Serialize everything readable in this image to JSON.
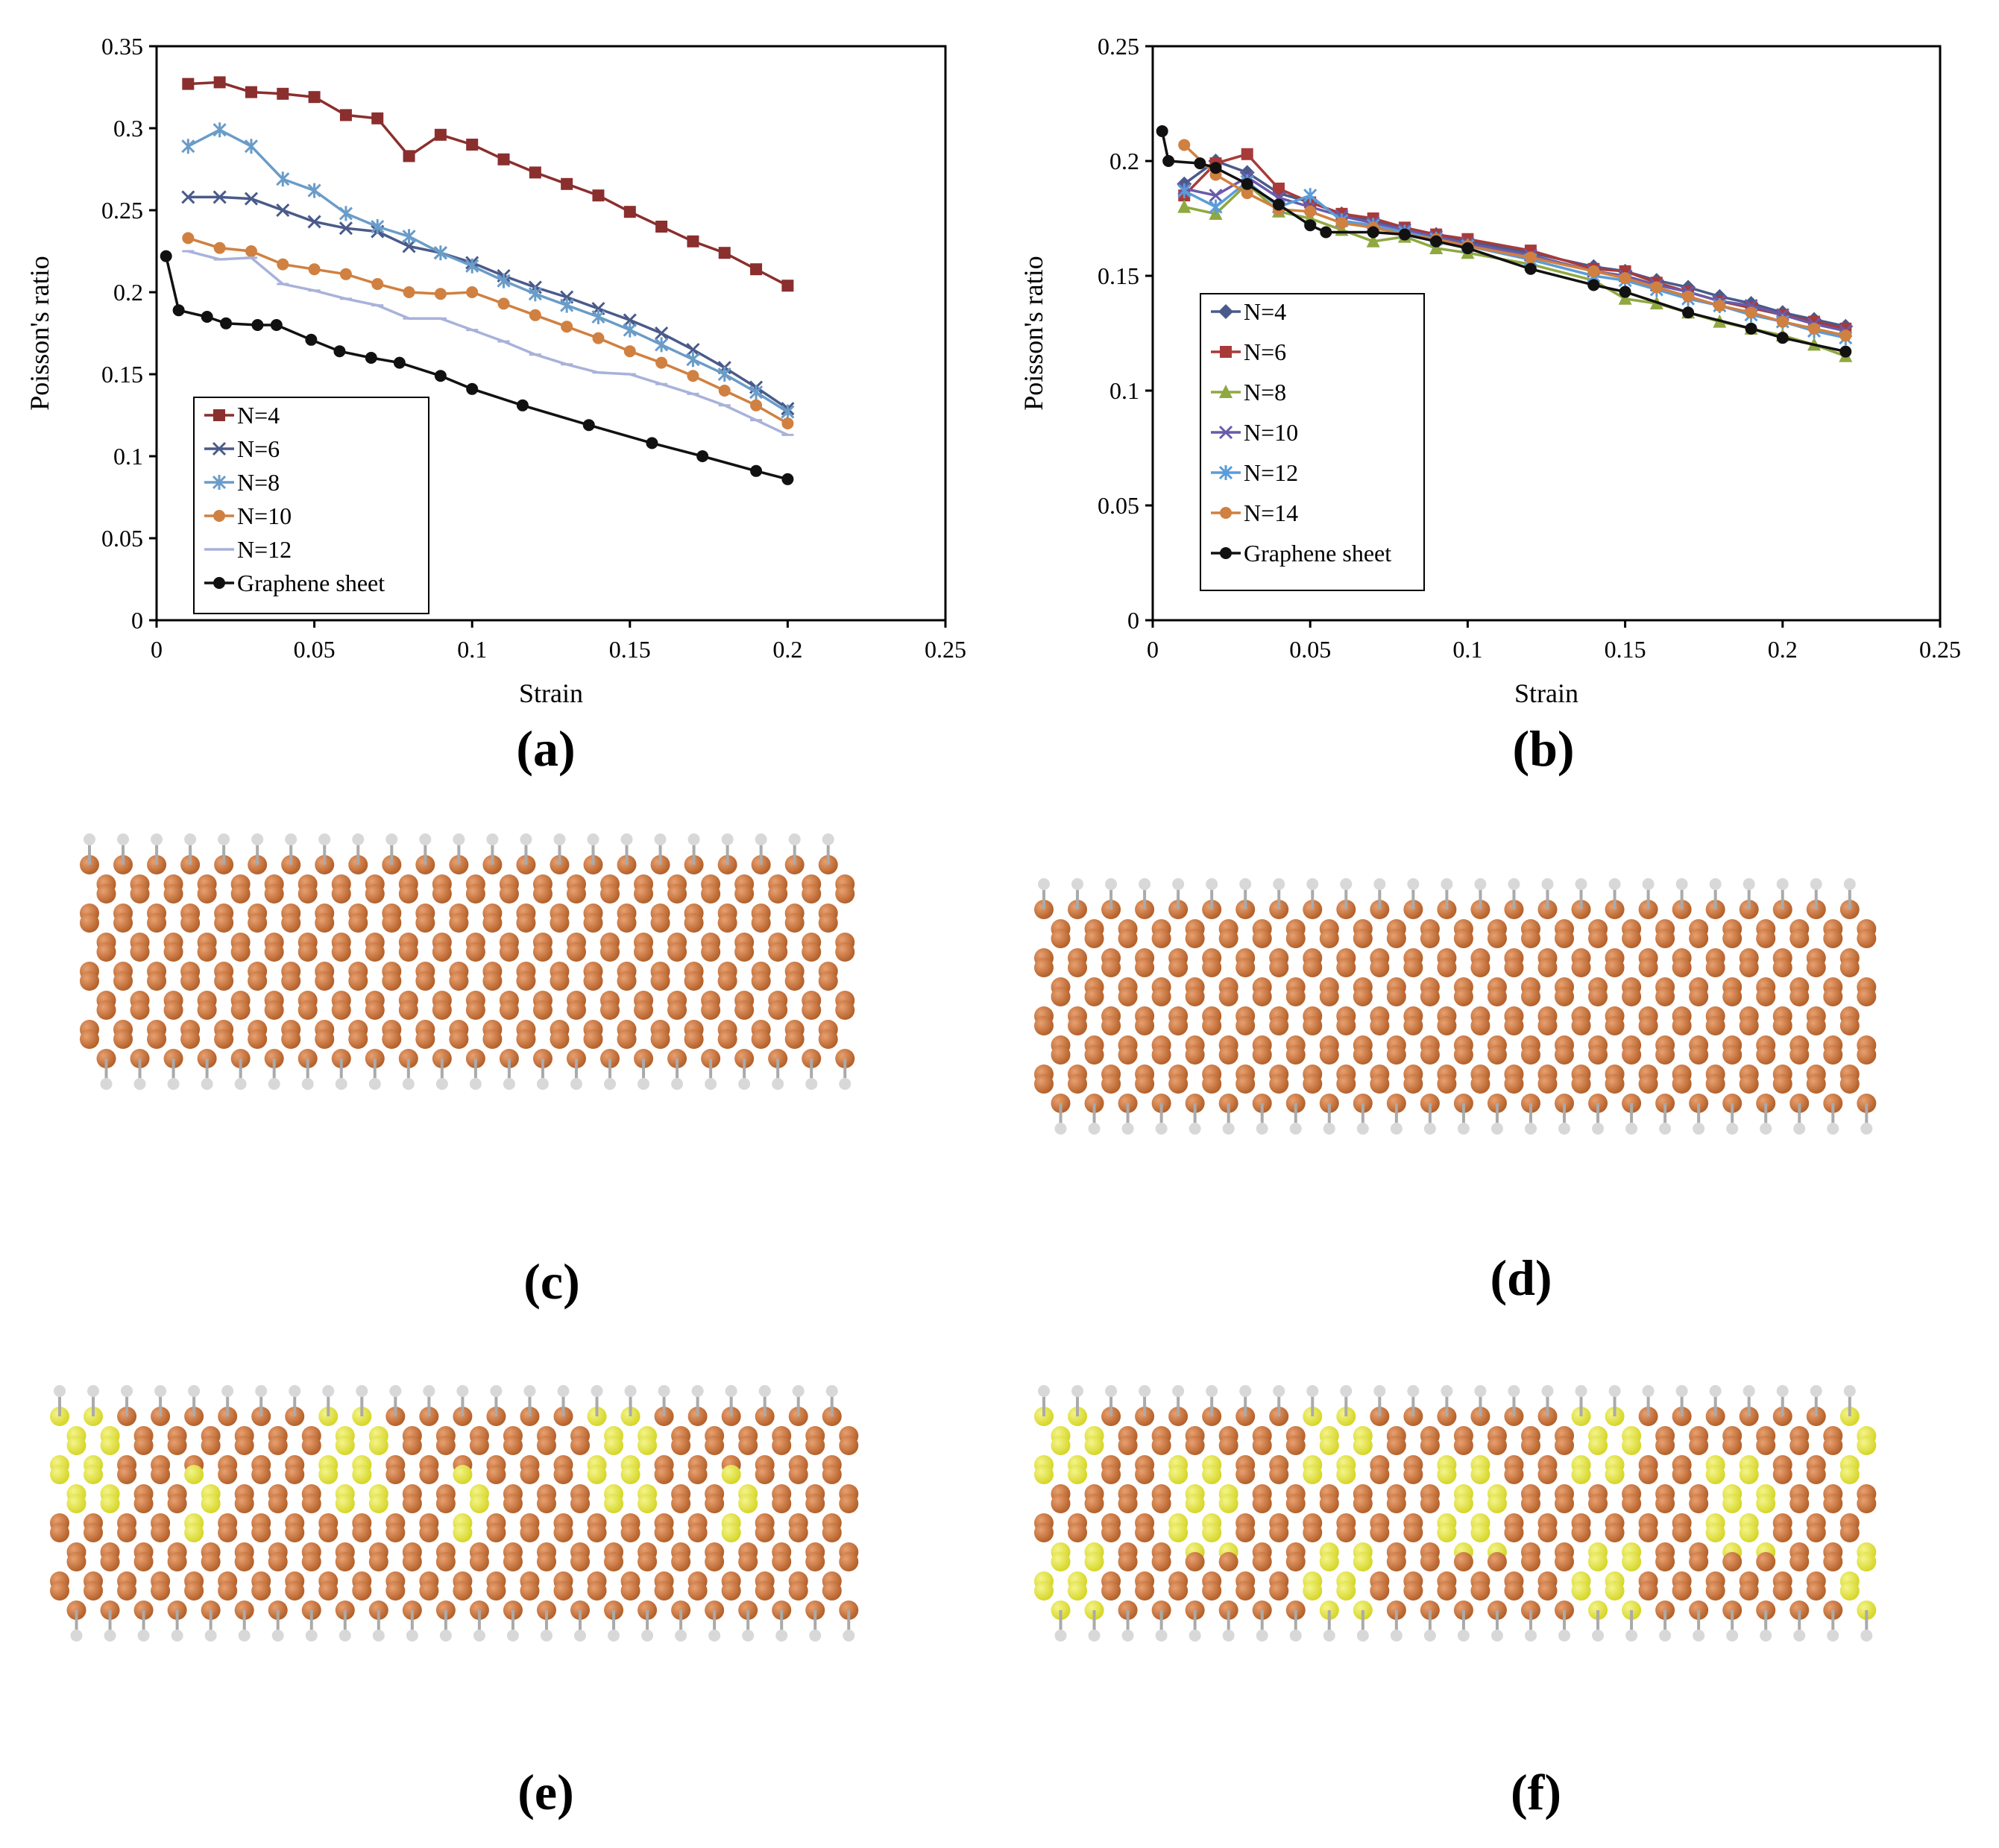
{
  "chart_data": [
    {
      "id": "a",
      "type": "line",
      "panel_label": "(a)",
      "xlabel": "Strain",
      "ylabel": "Poisson's ratio",
      "xlim": [
        0,
        0.25
      ],
      "ylim": [
        0,
        0.35
      ],
      "xticks": [
        "0",
        "0.05",
        "0.1",
        "0.15",
        "0.2",
        "0.25"
      ],
      "yticks": [
        "0",
        "0.05",
        "0.1",
        "0.15",
        "0.2",
        "0.25",
        "0.3",
        "0.35"
      ],
      "legend_position": "bottom-left",
      "series": [
        {
          "name": "N=4",
          "color": "#8B2E2E",
          "marker": "square",
          "x": [
            0.01,
            0.02,
            0.03,
            0.04,
            0.05,
            0.06,
            0.07,
            0.08,
            0.09,
            0.1,
            0.11,
            0.12,
            0.13,
            0.14,
            0.15,
            0.16,
            0.17,
            0.18,
            0.19,
            0.2
          ],
          "y": [
            0.327,
            0.328,
            0.322,
            0.321,
            0.319,
            0.308,
            0.306,
            0.283,
            0.296,
            0.29,
            0.281,
            0.273,
            0.266,
            0.259,
            0.249,
            0.24,
            0.231,
            0.224,
            0.214,
            0.204
          ]
        },
        {
          "name": "N=6",
          "color": "#4A5A8A",
          "marker": "x",
          "x": [
            0.01,
            0.02,
            0.03,
            0.04,
            0.05,
            0.06,
            0.07,
            0.08,
            0.09,
            0.1,
            0.11,
            0.12,
            0.13,
            0.14,
            0.15,
            0.16,
            0.17,
            0.18,
            0.19,
            0.2
          ],
          "y": [
            0.258,
            0.258,
            0.257,
            0.25,
            0.243,
            0.239,
            0.237,
            0.228,
            0.224,
            0.218,
            0.21,
            0.203,
            0.197,
            0.19,
            0.183,
            0.175,
            0.165,
            0.154,
            0.142,
            0.129
          ]
        },
        {
          "name": "N=8",
          "color": "#6A9CC8",
          "marker": "star",
          "x": [
            0.01,
            0.02,
            0.03,
            0.04,
            0.05,
            0.06,
            0.07,
            0.08,
            0.09,
            0.1,
            0.11,
            0.12,
            0.13,
            0.14,
            0.15,
            0.16,
            0.17,
            0.18,
            0.19,
            0.2
          ],
          "y": [
            0.289,
            0.299,
            0.289,
            0.269,
            0.262,
            0.248,
            0.24,
            0.234,
            0.224,
            0.216,
            0.207,
            0.199,
            0.192,
            0.185,
            0.177,
            0.168,
            0.159,
            0.15,
            0.139,
            0.127
          ]
        },
        {
          "name": "N=10",
          "color": "#D08040",
          "marker": "circle",
          "x": [
            0.01,
            0.02,
            0.03,
            0.04,
            0.05,
            0.06,
            0.07,
            0.08,
            0.09,
            0.1,
            0.11,
            0.12,
            0.13,
            0.14,
            0.15,
            0.16,
            0.17,
            0.18,
            0.19,
            0.2
          ],
          "y": [
            0.233,
            0.227,
            0.225,
            0.217,
            0.214,
            0.211,
            0.205,
            0.2,
            0.199,
            0.2,
            0.193,
            0.186,
            0.179,
            0.172,
            0.164,
            0.157,
            0.149,
            0.14,
            0.131,
            0.12
          ]
        },
        {
          "name": "N=12",
          "color": "#A8B2DA",
          "marker": "dash",
          "x": [
            0.01,
            0.02,
            0.03,
            0.04,
            0.05,
            0.06,
            0.07,
            0.08,
            0.09,
            0.1,
            0.11,
            0.12,
            0.13,
            0.14,
            0.15,
            0.16,
            0.17,
            0.18,
            0.19,
            0.2
          ],
          "y": [
            0.225,
            0.22,
            0.221,
            0.205,
            0.201,
            0.196,
            0.192,
            0.184,
            0.184,
            0.177,
            0.17,
            0.162,
            0.156,
            0.151,
            0.15,
            0.144,
            0.138,
            0.131,
            0.122,
            0.113
          ]
        },
        {
          "name": "Graphene sheet",
          "color": "#111111",
          "marker": "circle",
          "x": [
            0.003,
            0.007,
            0.016,
            0.022,
            0.032,
            0.038,
            0.049,
            0.058,
            0.068,
            0.077,
            0.09,
            0.1,
            0.116,
            0.137,
            0.157,
            0.173,
            0.19,
            0.2
          ],
          "y": [
            0.222,
            0.189,
            0.185,
            0.181,
            0.18,
            0.18,
            0.171,
            0.164,
            0.16,
            0.157,
            0.149,
            0.141,
            0.131,
            0.119,
            0.108,
            0.1,
            0.091,
            0.086
          ]
        }
      ]
    },
    {
      "id": "b",
      "type": "line",
      "panel_label": "(b)",
      "xlabel": "Strain",
      "ylabel": "Poisson's ratio",
      "xlim": [
        0,
        0.25
      ],
      "ylim": [
        0,
        0.25
      ],
      "xticks": [
        "0",
        "0.05",
        "0.1",
        "0.15",
        "0.2",
        "0.25"
      ],
      "yticks": [
        "0",
        "0.05",
        "0.1",
        "0.15",
        "0.2",
        "0.25"
      ],
      "legend_position": "center-left",
      "series": [
        {
          "name": "N=4",
          "color": "#4A5A8A",
          "marker": "diamond",
          "x": [
            0.01,
            0.02,
            0.03,
            0.04,
            0.05,
            0.06,
            0.07,
            0.08,
            0.09,
            0.1,
            0.12,
            0.14,
            0.15,
            0.16,
            0.17,
            0.18,
            0.19,
            0.2,
            0.21,
            0.22
          ],
          "y": [
            0.19,
            0.2,
            0.195,
            0.186,
            0.182,
            0.177,
            0.174,
            0.17,
            0.168,
            0.165,
            0.16,
            0.154,
            0.152,
            0.148,
            0.145,
            0.141,
            0.138,
            0.134,
            0.131,
            0.128
          ]
        },
        {
          "name": "N=6",
          "color": "#A83A3A",
          "marker": "square",
          "x": [
            0.01,
            0.02,
            0.03,
            0.04,
            0.05,
            0.06,
            0.07,
            0.08,
            0.09,
            0.1,
            0.12,
            0.14,
            0.15,
            0.16,
            0.17,
            0.18,
            0.19,
            0.2,
            0.21,
            0.22
          ],
          "y": [
            0.185,
            0.199,
            0.203,
            0.188,
            0.182,
            0.177,
            0.175,
            0.171,
            0.168,
            0.166,
            0.161,
            0.153,
            0.152,
            0.147,
            0.143,
            0.139,
            0.136,
            0.133,
            0.13,
            0.127
          ]
        },
        {
          "name": "N=8",
          "color": "#8FA840",
          "marker": "triangle",
          "x": [
            0.01,
            0.02,
            0.03,
            0.04,
            0.05,
            0.06,
            0.07,
            0.08,
            0.09,
            0.1,
            0.12,
            0.14,
            0.15,
            0.16,
            0.17,
            0.18,
            0.19,
            0.2,
            0.21,
            0.22
          ],
          "y": [
            0.18,
            0.177,
            0.19,
            0.178,
            0.175,
            0.17,
            0.165,
            0.167,
            0.162,
            0.16,
            0.155,
            0.148,
            0.14,
            0.138,
            0.134,
            0.13,
            0.127,
            0.124,
            0.12,
            0.115
          ]
        },
        {
          "name": "N=10",
          "color": "#6A5AAA",
          "marker": "x",
          "x": [
            0.01,
            0.02,
            0.03,
            0.04,
            0.05,
            0.06,
            0.07,
            0.08,
            0.09,
            0.1,
            0.12,
            0.14,
            0.15,
            0.16,
            0.17,
            0.18,
            0.19,
            0.2,
            0.21,
            0.22
          ],
          "y": [
            0.188,
            0.185,
            0.193,
            0.184,
            0.18,
            0.176,
            0.173,
            0.17,
            0.167,
            0.164,
            0.159,
            0.152,
            0.15,
            0.146,
            0.143,
            0.139,
            0.137,
            0.133,
            0.129,
            0.126
          ]
        },
        {
          "name": "N=12",
          "color": "#5A9CD8",
          "marker": "star",
          "x": [
            0.01,
            0.02,
            0.03,
            0.04,
            0.05,
            0.06,
            0.07,
            0.08,
            0.09,
            0.1,
            0.12,
            0.14,
            0.15,
            0.16,
            0.17,
            0.18,
            0.19,
            0.2,
            0.21,
            0.22
          ],
          "y": [
            0.187,
            0.18,
            0.191,
            0.18,
            0.185,
            0.174,
            0.172,
            0.169,
            0.166,
            0.163,
            0.157,
            0.15,
            0.148,
            0.144,
            0.14,
            0.137,
            0.133,
            0.13,
            0.126,
            0.123
          ]
        },
        {
          "name": "N=14",
          "color": "#D08040",
          "marker": "circle",
          "x": [
            0.01,
            0.02,
            0.03,
            0.04,
            0.05,
            0.06,
            0.07,
            0.08,
            0.09,
            0.1,
            0.12,
            0.14,
            0.15,
            0.16,
            0.17,
            0.18,
            0.19,
            0.2,
            0.21,
            0.22
          ],
          "y": [
            0.207,
            0.194,
            0.186,
            0.179,
            0.178,
            0.173,
            0.171,
            0.168,
            0.166,
            0.163,
            0.158,
            0.152,
            0.149,
            0.145,
            0.141,
            0.137,
            0.134,
            0.13,
            0.127,
            0.124
          ]
        },
        {
          "name": "Graphene sheet",
          "color": "#111111",
          "marker": "circle",
          "x": [
            0.003,
            0.005,
            0.015,
            0.02,
            0.03,
            0.04,
            0.05,
            0.055,
            0.07,
            0.08,
            0.09,
            0.1,
            0.12,
            0.14,
            0.15,
            0.17,
            0.19,
            0.2,
            0.22
          ],
          "y": [
            0.213,
            0.2,
            0.199,
            0.197,
            0.19,
            0.181,
            0.172,
            0.169,
            0.169,
            0.168,
            0.165,
            0.162,
            0.153,
            0.146,
            0.143,
            0.134,
            0.127,
            0.123,
            0.117
          ]
        }
      ]
    }
  ],
  "structures": [
    {
      "id": "c",
      "panel_label": "(c)",
      "variant": "pristine",
      "rows": 6,
      "cols": 23
    },
    {
      "id": "d",
      "panel_label": "(d)",
      "variant": "pristine",
      "rows": 6,
      "cols": 25
    },
    {
      "id": "e",
      "panel_label": "(e)",
      "variant": "doped-bands",
      "rows": 6,
      "cols": 24
    },
    {
      "id": "f",
      "panel_label": "(f)",
      "variant": "doped-blocks",
      "rows": 6,
      "cols": 25
    }
  ],
  "colors": {
    "carbon": "#B5612A",
    "carbon_highlight": "#E8A070",
    "dopant": "#D6D62A",
    "dopant_highlight": "#F4F48A",
    "hydrogen": "#D8D8D8",
    "bond": "#9A5A30"
  }
}
